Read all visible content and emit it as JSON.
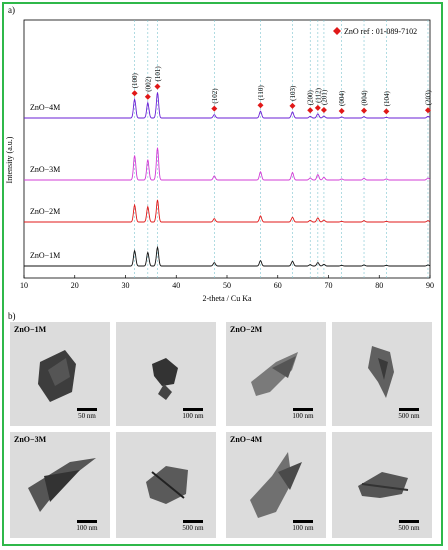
{
  "panel_a_label": "a)",
  "panel_b_label": "b)",
  "chart_data": {
    "type": "line",
    "xlabel": "2-theta / Cu Ka",
    "ylabel": "Intensity (a.u.)",
    "xlim": [
      10,
      90
    ],
    "xticks": [
      10,
      20,
      30,
      40,
      50,
      60,
      70,
      80,
      90
    ],
    "legend": "ZnO ref : 01-089-7102",
    "reference_peaks": [
      {
        "x": 31.8,
        "hkl": "(100)"
      },
      {
        "x": 34.4,
        "hkl": "(002)"
      },
      {
        "x": 36.3,
        "hkl": "(101)"
      },
      {
        "x": 47.5,
        "hkl": "(102)"
      },
      {
        "x": 56.6,
        "hkl": "(110)"
      },
      {
        "x": 62.9,
        "hkl": "(103)"
      },
      {
        "x": 66.4,
        "hkl": "(200)"
      },
      {
        "x": 67.9,
        "hkl": "(112)"
      },
      {
        "x": 69.1,
        "hkl": "(201)"
      },
      {
        "x": 72.6,
        "hkl": "(004)"
      },
      {
        "x": 77.0,
        "hkl": "(004)"
      },
      {
        "x": 81.4,
        "hkl": "(104)"
      },
      {
        "x": 89.6,
        "hkl": "(203)"
      }
    ],
    "series": [
      {
        "name": "ZnO−4M",
        "color": "#6a1fd6",
        "heights": [
          0.55,
          0.45,
          0.75,
          0.1,
          0.2,
          0.18,
          0.05,
          0.12,
          0.06,
          0.03,
          0.04,
          0.02,
          0.05
        ]
      },
      {
        "name": "ZnO−3M",
        "color": "#d23cd6",
        "heights": [
          0.72,
          0.6,
          0.95,
          0.12,
          0.24,
          0.22,
          0.06,
          0.16,
          0.08,
          0.03,
          0.05,
          0.03,
          0.06
        ]
      },
      {
        "name": "ZnO−2M",
        "color": "#e01818",
        "heights": [
          0.5,
          0.45,
          0.65,
          0.1,
          0.18,
          0.14,
          0.05,
          0.12,
          0.06,
          0.02,
          0.04,
          0.02,
          0.04
        ]
      },
      {
        "name": "ZnO−1M",
        "color": "#111111",
        "heights": [
          0.45,
          0.4,
          0.55,
          0.1,
          0.16,
          0.14,
          0.04,
          0.1,
          0.05,
          0.02,
          0.03,
          0.02,
          0.03
        ]
      }
    ]
  },
  "tem_images": [
    {
      "label": "ZnO−1M",
      "scales": [
        "50 nm",
        "100 nm"
      ]
    },
    {
      "label": "ZnO−2M",
      "scales": [
        "100 nm",
        "500 nm"
      ]
    },
    {
      "label": "ZnO−3M",
      "scales": [
        "100 nm",
        "500 nm"
      ]
    },
    {
      "label": "ZnO−4M",
      "scales": [
        "100 nm",
        "500 nm"
      ]
    }
  ]
}
